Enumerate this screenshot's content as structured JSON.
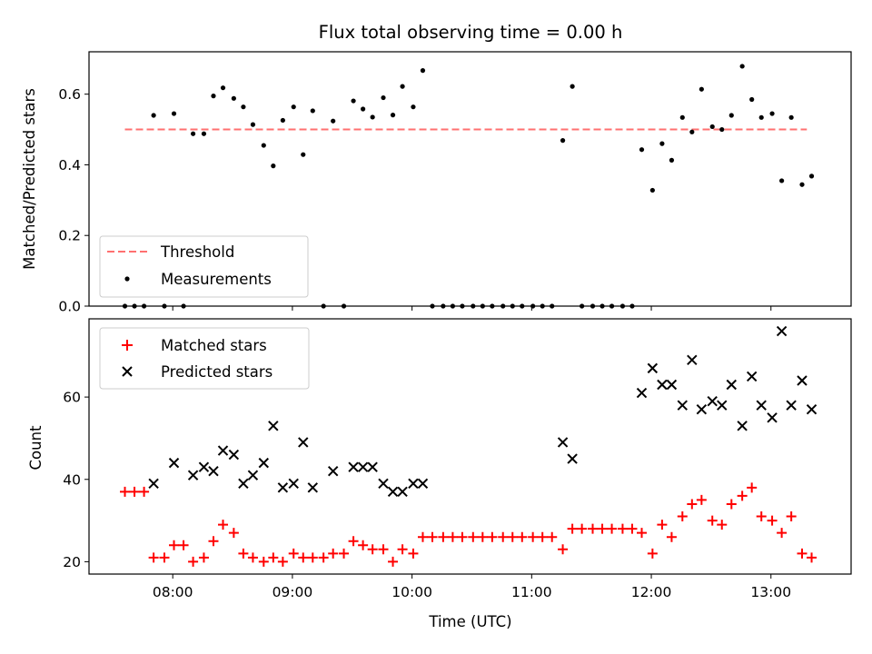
{
  "title": "Flux total observing time = 0.00 h",
  "chart_data": [
    {
      "type": "scatter",
      "ylabel": "Matched/Predicted stars",
      "ylim": [
        0,
        0.72
      ],
      "yticks": [
        0.0,
        0.2,
        0.4,
        0.6
      ],
      "ytick_labels": [
        "0.0",
        "0.2",
        "0.4",
        "0.6"
      ],
      "grid": false,
      "legend_location": "lower-left",
      "threshold": {
        "name": "Threshold",
        "value": 0.5,
        "x_start": 7.6,
        "x_end": 13.3,
        "color": "#ff7070",
        "style": "dashed"
      },
      "series": [
        {
          "name": "Measurements",
          "marker": "dot",
          "color": "#000000",
          "x": [
            7.6,
            7.68,
            7.76,
            7.84,
            7.93,
            8.01,
            8.09,
            8.17,
            8.26,
            8.34,
            8.42,
            8.51,
            8.59,
            8.67,
            8.76,
            8.84,
            8.92,
            9.01,
            9.09,
            9.17,
            9.26,
            9.34,
            9.43,
            9.51,
            9.59,
            9.67,
            9.76,
            9.84,
            9.92,
            10.01,
            10.09,
            10.17,
            10.26,
            10.34,
            10.42,
            10.51,
            10.59,
            10.67,
            10.76,
            10.84,
            10.92,
            11.01,
            11.09,
            11.17,
            11.26,
            11.34,
            11.42,
            11.51,
            11.59,
            11.67,
            11.76,
            11.84,
            11.92,
            12.01,
            12.09,
            12.17,
            12.26,
            12.34,
            12.42,
            12.51,
            12.59,
            12.67,
            12.76,
            12.84,
            12.92,
            13.01,
            13.09,
            13.17,
            13.26,
            13.34
          ],
          "y": [
            0.0,
            0.0,
            0.0,
            0.54,
            0.0,
            0.545,
            0.0,
            0.488,
            0.488,
            0.595,
            0.618,
            0.588,
            0.564,
            0.514,
            0.455,
            0.397,
            0.526,
            0.564,
            0.429,
            0.553,
            0.0,
            0.524,
            0.0,
            0.581,
            0.558,
            0.535,
            0.59,
            0.541,
            0.622,
            0.564,
            0.667,
            0.0,
            0.0,
            0.0,
            0.0,
            0.0,
            0.0,
            0.0,
            0.0,
            0.0,
            0.0,
            0.0,
            0.0,
            0.0,
            0.469,
            0.622,
            0.0,
            0.0,
            0.0,
            0.0,
            0.0,
            0.0,
            0.443,
            0.328,
            0.46,
            0.413,
            0.534,
            0.493,
            0.614,
            0.508,
            0.5,
            0.54,
            0.679,
            0.585,
            0.534,
            0.545,
            0.355,
            0.534,
            0.344,
            0.368
          ]
        }
      ]
    },
    {
      "type": "scatter",
      "xlabel": "Time (UTC)",
      "ylabel": "Count",
      "ylim": [
        17,
        79
      ],
      "yticks": [
        20,
        40,
        60
      ],
      "ytick_labels": [
        "20",
        "40",
        "60"
      ],
      "xlim": [
        7.3,
        13.67
      ],
      "xticks": [
        8,
        9,
        10,
        11,
        12,
        13
      ],
      "xtick_labels": [
        "08:00",
        "09:00",
        "10:00",
        "11:00",
        "12:00",
        "13:00"
      ],
      "grid": false,
      "legend_location": "upper-left",
      "series": [
        {
          "name": "Matched stars",
          "marker": "plus",
          "color": "#ff0000",
          "x": [
            7.6,
            7.68,
            7.76,
            7.84,
            7.93,
            8.01,
            8.09,
            8.17,
            8.26,
            8.34,
            8.42,
            8.51,
            8.59,
            8.67,
            8.76,
            8.84,
            8.92,
            9.01,
            9.09,
            9.17,
            9.26,
            9.34,
            9.43,
            9.51,
            9.59,
            9.67,
            9.76,
            9.84,
            9.92,
            10.01,
            10.09,
            10.17,
            10.26,
            10.34,
            10.42,
            10.51,
            10.59,
            10.67,
            10.76,
            10.84,
            10.92,
            11.01,
            11.09,
            11.17,
            11.26,
            11.34,
            11.42,
            11.51,
            11.59,
            11.67,
            11.76,
            11.84,
            11.92,
            12.01,
            12.09,
            12.17,
            12.26,
            12.34,
            12.42,
            12.51,
            12.59,
            12.67,
            12.76,
            12.84,
            12.92,
            13.01,
            13.09,
            13.17,
            13.26,
            13.34
          ],
          "y": [
            37,
            37,
            37,
            21,
            21,
            24,
            24,
            20,
            21,
            25,
            29,
            27,
            22,
            21,
            20,
            21,
            20,
            22,
            21,
            21,
            21,
            22,
            22,
            25,
            24,
            23,
            23,
            20,
            23,
            22,
            26,
            26,
            26,
            26,
            26,
            26,
            26,
            26,
            26,
            26,
            26,
            26,
            26,
            26,
            23,
            28,
            28,
            28,
            28,
            28,
            28,
            28,
            27,
            22,
            29,
            26,
            31,
            34,
            35,
            30,
            29,
            34,
            36,
            38,
            31,
            30,
            27,
            31,
            22,
            21
          ]
        },
        {
          "name": "Predicted stars",
          "marker": "x",
          "color": "#000000",
          "x": [
            7.84,
            8.01,
            8.17,
            8.26,
            8.34,
            8.42,
            8.51,
            8.59,
            8.67,
            8.76,
            8.84,
            8.92,
            9.01,
            9.09,
            9.17,
            9.34,
            9.51,
            9.59,
            9.67,
            9.76,
            9.84,
            9.92,
            10.01,
            10.09,
            11.26,
            11.34,
            11.92,
            12.01,
            12.09,
            12.17,
            12.26,
            12.34,
            12.42,
            12.51,
            12.59,
            12.67,
            12.76,
            12.84,
            12.92,
            13.01,
            13.09,
            13.17,
            13.26,
            13.34
          ],
          "y": [
            39,
            44,
            41,
            43,
            42,
            47,
            46,
            39,
            41,
            44,
            53,
            38,
            39,
            49,
            38,
            42,
            43,
            43,
            43,
            39,
            37,
            37,
            39,
            39,
            49,
            45,
            61,
            67,
            63,
            63,
            58,
            69,
            57,
            59,
            58,
            63,
            53,
            65,
            58,
            55,
            76,
            58,
            64,
            57
          ]
        }
      ]
    }
  ]
}
